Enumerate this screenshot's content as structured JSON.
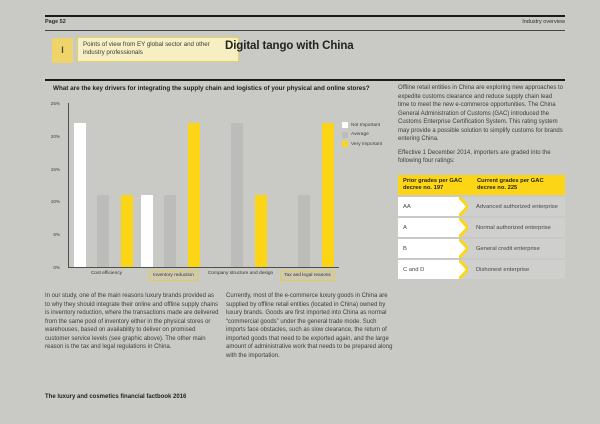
{
  "page": {
    "header": {
      "page_number": "Page 52",
      "section": "Industry overview"
    },
    "badge": {
      "marker": "I",
      "text": "Points of view from EY global sector and other industry professionals"
    },
    "title": "Digital tango with China",
    "footer": "The luxury and cosmetics financial factbook 2016"
  },
  "colors": {
    "page_bg": "#c9c9c6",
    "ey_yellow": "#fcd616",
    "bar_gray": "#bcbcba",
    "bar_white": "#fefefe",
    "highlight_border": "#e3cc52",
    "table_row_bg": "#cfcfcd"
  },
  "chart_data": {
    "type": "bar",
    "title": "What are the key drivers for integrating the supply chain and logistics of your physical and online stores?",
    "categories": [
      "Cost efficiency",
      "Inventory reduction",
      "Company structure and design",
      "Tax and legal reasons"
    ],
    "highlighted_categories": [
      "Inventory reduction",
      "Tax and legal reasons"
    ],
    "series": [
      {
        "name": "Not Important",
        "color": "#fefefe",
        "values": [
          22,
          11,
          0,
          0
        ]
      },
      {
        "name": "Average",
        "color": "#bcbcba",
        "values": [
          11,
          11,
          22,
          11
        ]
      },
      {
        "name": "Very Important",
        "color": "#fcd616",
        "values": [
          11,
          22,
          11,
          22
        ]
      }
    ],
    "xlabel": "",
    "ylabel": "",
    "unit": "%",
    "ylim": [
      0,
      25
    ],
    "yticks": [
      "0%",
      "5%",
      "10%",
      "15%",
      "20%",
      "25%"
    ],
    "grid": false,
    "legend_position": "upper-right"
  },
  "left_column": {
    "paragraph_1": "In our study, one of the main reasons luxury brands provided as to why they should integrate their online and offline supply chains is inventory reduction, where the transactions made are delivered from the same pool of inventory either in the physical stores or warehouses, based on availability to deliver on promised customer service levels (see graphic above). The other main reason is the tax and legal regulations in China.",
    "paragraph_2": "Currently, most of the e-commerce luxury goods in China are supplied by offline retail entities (located in China) owned by luxury brands. Goods are first imported into China as normal “commercial goods” under the general trade mode. Such imports face obstacles, such as slow clearance, the return of imported goods that need to be exported again, and the large amount of administrative work that needs to be prepared along with the importation."
  },
  "right_column": {
    "paragraph_1": "Offline retail entities in China are exploring new approaches to expedite customs clearance and reduce supply chain lead time to meet the new e-commerce opportunities. The China General Administration of Customs (GAC) introduced the Customs Enterprise Certification System. This rating system may provide a possible solution to simplify customs for brands entering China.",
    "paragraph_2": "Effective 1 December 2014, importers are graded into the following four ratings:",
    "table": {
      "col1_header": "Prior grades per GAC decree no. 197",
      "col2_header": "Current grades per GAC decree no. 225",
      "rows": [
        {
          "prior": "AA",
          "current": "Advanced authorized enterprise"
        },
        {
          "prior": "A",
          "current": "Normal authorized enterprise"
        },
        {
          "prior": "B",
          "current": "General credit enterprise"
        },
        {
          "prior": "C and D",
          "current": "Dishonest enterprise"
        }
      ]
    }
  }
}
